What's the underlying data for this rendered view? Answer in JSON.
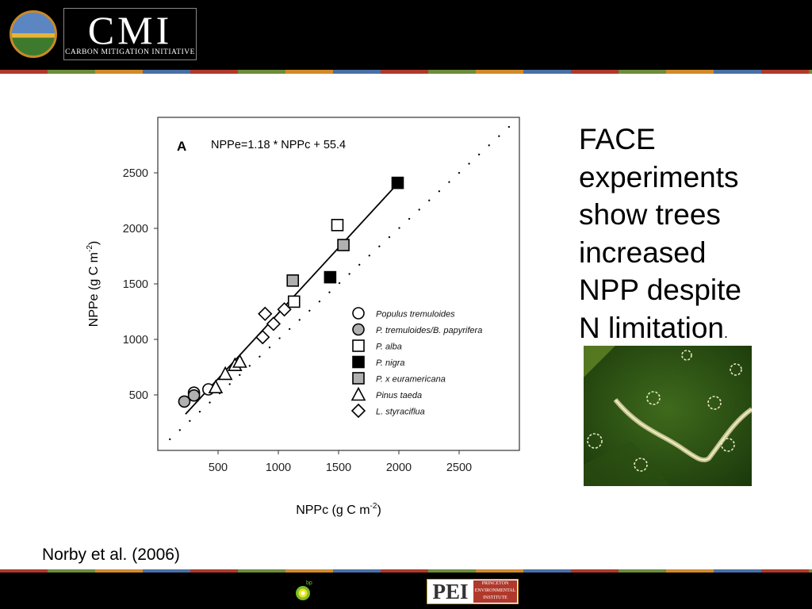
{
  "header": {
    "logo_main": "CMI",
    "logo_subtitle": "CARBON MITIGATION INITIATIVE"
  },
  "side_text": {
    "line1": "FACE",
    "line2": "experiments",
    "line3": "show trees",
    "line4": "increased",
    "line5": "NPP despite",
    "line6": "N limitation",
    "end_punct": "."
  },
  "citation": "Norby et al. (2006)",
  "footer": {
    "bp_label": "bp",
    "pei_main": "PEI",
    "pei_sub_1": "PRINCETON",
    "pei_sub_2": "ENVIRONMENTAL",
    "pei_sub_3": "INSTITUTE"
  },
  "chart_data": {
    "type": "scatter",
    "panel_label": "A",
    "equation": "NPPe=1.18 * NPPc + 55.4",
    "xlabel_main": "NPPc (g C m",
    "xlabel_sup": "-2",
    "xlabel_end": ")",
    "ylabel_main": "NPPe (g C m",
    "ylabel_sup": "-2",
    "ylabel_end": ")",
    "xlim": [
      0,
      3000
    ],
    "ylim": [
      0,
      3000
    ],
    "xticks": [
      500,
      1000,
      1500,
      2000,
      2500
    ],
    "yticks": [
      500,
      1000,
      1500,
      2000,
      2500
    ],
    "xtick_labels": [
      "500",
      "1000",
      "1500",
      "2000",
      "2500"
    ],
    "ytick_labels": [
      "500",
      "1000",
      "1500",
      "2000",
      "2500"
    ],
    "grid": false,
    "legend_position": "bottom-right",
    "reference_line": {
      "style": "dotted",
      "slope": 1,
      "intercept": 0
    },
    "regression_line": {
      "slope": 1.18,
      "intercept": 55.4,
      "x_range": [
        230,
        1980
      ]
    },
    "series": [
      {
        "name": "Populus tremuloides",
        "marker": "circle",
        "fill": "#ffffff",
        "points": [
          [
            300,
            520
          ],
          [
            420,
            550
          ]
        ]
      },
      {
        "name": "P. tremuloides/B. papyrifera",
        "marker": "circle",
        "fill": "#b0b0b0",
        "points": [
          [
            220,
            440
          ],
          [
            300,
            495
          ]
        ]
      },
      {
        "name": "P. alba",
        "marker": "square",
        "fill": "#ffffff",
        "points": [
          [
            1130,
            1340
          ],
          [
            1490,
            2030
          ]
        ]
      },
      {
        "name": "P. nigra",
        "marker": "square",
        "fill": "#000000",
        "points": [
          [
            1430,
            1560
          ],
          [
            1990,
            2410
          ]
        ]
      },
      {
        "name": "P. x euramericana",
        "marker": "square",
        "fill": "#b0b0b0",
        "points": [
          [
            1120,
            1530
          ],
          [
            1540,
            1850
          ]
        ]
      },
      {
        "name": "Pinus taeda",
        "marker": "triangle",
        "fill": "#ffffff",
        "points": [
          [
            480,
            570
          ],
          [
            560,
            690
          ],
          [
            640,
            770
          ],
          [
            680,
            800
          ]
        ]
      },
      {
        "name": "L. styraciflua",
        "marker": "diamond",
        "fill": "#ffffff",
        "points": [
          [
            870,
            1020
          ],
          [
            960,
            1140
          ],
          [
            1050,
            1270
          ],
          [
            890,
            1230
          ]
        ]
      }
    ]
  }
}
